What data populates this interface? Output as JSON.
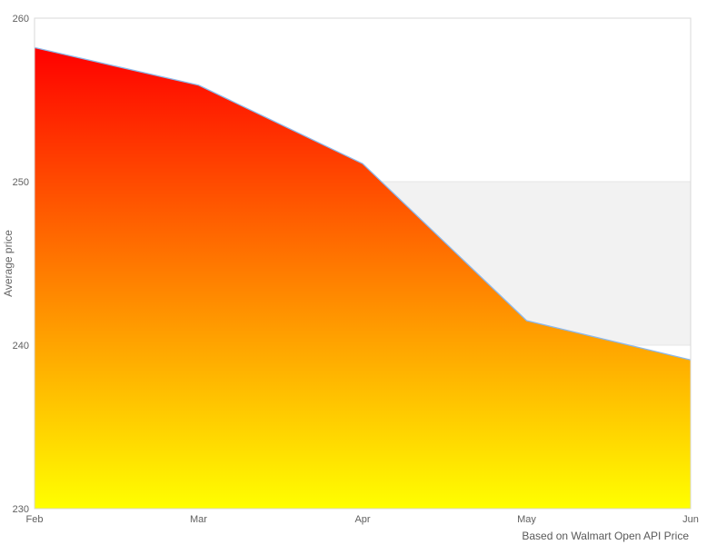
{
  "chart_data": {
    "type": "area",
    "title": "",
    "ylabel": "Average price",
    "xlabel": "",
    "caption": "Based on Walmart Open API Price",
    "categories": [
      "Feb",
      "Mar",
      "Apr",
      "May",
      "Jun"
    ],
    "series": [
      {
        "name": "Average price",
        "values": [
          258.2,
          255.9,
          251.1,
          241.5,
          239.1
        ]
      }
    ],
    "ylim": [
      230,
      260
    ],
    "yticks": [
      230,
      240,
      250,
      260
    ],
    "legend": "none",
    "grid": "plot-band-only",
    "plot_band": {
      "from": 240,
      "to": 250
    },
    "colors": {
      "area_gradient_top": "#ff0000",
      "area_gradient_bottom": "#ffff00",
      "line": "#8cb8ea",
      "plot_band": "#f2f2f2",
      "gridline": "#e6e6e6",
      "plot_border": "#d8d8d8",
      "axis_label": "#606060",
      "caption_text": "#595959"
    }
  }
}
